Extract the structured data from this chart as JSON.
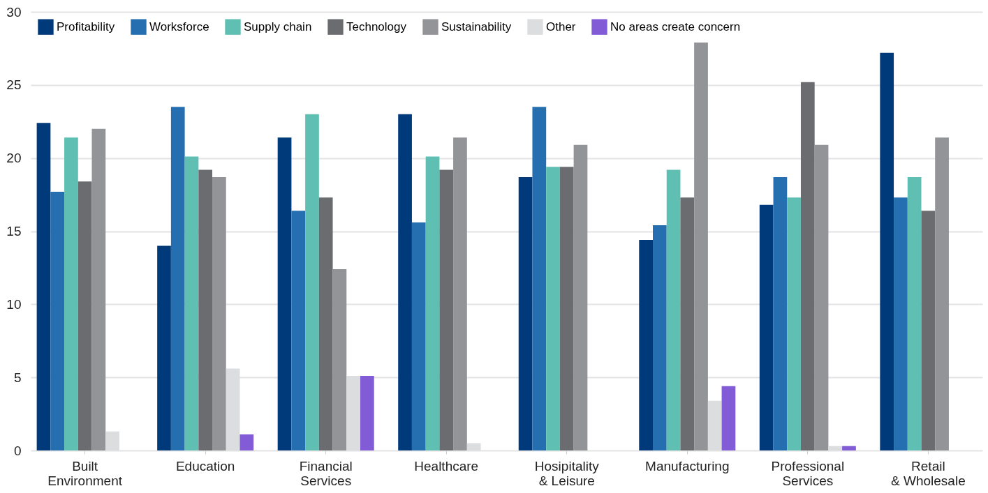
{
  "chart_data": {
    "type": "bar",
    "categories": [
      "Built Environment",
      "Education",
      "Financial Services",
      "Healthcare",
      "Hosipitality & Leisure",
      "Manufacturing",
      "Professional Services",
      "Retail & Wholesale"
    ],
    "series": [
      {
        "name": "Profitability",
        "color": "#003a7a",
        "values": [
          22.4,
          14.0,
          21.4,
          23.0,
          18.7,
          14.4,
          16.8,
          27.2
        ]
      },
      {
        "name": "Worksforce",
        "color": "#256fb0",
        "values": [
          17.7,
          23.5,
          16.4,
          15.6,
          23.5,
          15.4,
          18.7,
          17.3
        ]
      },
      {
        "name": "Supply chain",
        "color": "#5fbfb3",
        "values": [
          21.4,
          20.1,
          23.0,
          20.1,
          19.4,
          19.2,
          17.3,
          18.7
        ]
      },
      {
        "name": "Technology",
        "color": "#6b6c70",
        "values": [
          18.4,
          19.2,
          17.3,
          19.2,
          19.4,
          17.3,
          25.2,
          16.4
        ]
      },
      {
        "name": "Sustainability",
        "color": "#939498",
        "values": [
          22.0,
          18.7,
          12.4,
          21.4,
          20.9,
          27.9,
          20.9,
          21.4
        ]
      },
      {
        "name": "Other",
        "color": "#dcdddf",
        "values": [
          1.3,
          5.6,
          5.1,
          0.5,
          null,
          3.4,
          0.3,
          null
        ]
      },
      {
        "name": "No areas create concern",
        "color": "#825bd6",
        "values": [
          null,
          1.1,
          5.1,
          null,
          null,
          4.4,
          0.3,
          null
        ]
      }
    ],
    "ylim": [
      0,
      30
    ],
    "yticks": [
      0,
      5,
      10,
      15,
      20,
      25,
      30
    ],
    "grid": "y",
    "legend": "top left"
  }
}
